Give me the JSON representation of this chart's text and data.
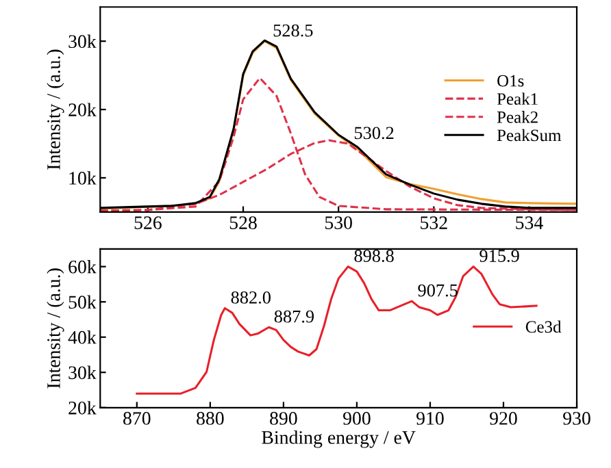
{
  "chart_data": [
    {
      "type": "line",
      "ylabel": "Intensity / (a.u.)",
      "xlim": [
        525,
        535
      ],
      "ylim": [
        5000,
        35000
      ],
      "xticks": [
        526,
        528,
        530,
        532,
        534
      ],
      "yticks": [
        {
          "value": 10000,
          "label": "10k"
        },
        {
          "value": 20000,
          "label": "20k"
        },
        {
          "value": 30000,
          "label": "30k"
        }
      ],
      "legend": "right",
      "grid": false,
      "series": [
        {
          "name": "O1s",
          "color": "#f0a030",
          "line_style": "solid",
          "x": [
            525.0,
            526.5,
            527.0,
            527.3,
            527.5,
            527.8,
            528.0,
            528.2,
            528.45,
            528.7,
            529.0,
            529.5,
            530.0,
            530.4,
            531.0,
            531.5,
            532.0,
            532.5,
            533.0,
            533.5,
            534.0,
            535.0
          ],
          "values": [
            5500,
            5900,
            6200,
            7000,
            9500,
            16900,
            25000,
            28300,
            30000,
            29000,
            24300,
            19400,
            16200,
            14200,
            10100,
            9100,
            8400,
            7600,
            6900,
            6400,
            6300,
            6200
          ]
        },
        {
          "name": "Peak1",
          "color": "#e0304a",
          "line_style": "dashed",
          "x": [
            525.0,
            526.0,
            527.0,
            527.5,
            527.8,
            528.0,
            528.35,
            528.7,
            529.0,
            529.3,
            529.6,
            530.0,
            531.0,
            535.0
          ],
          "values": [
            5200,
            5300,
            5800,
            9500,
            16000,
            21500,
            24600,
            22000,
            16500,
            10500,
            7200,
            5900,
            5400,
            5300
          ]
        },
        {
          "name": "Peak2",
          "color": "#e0304a",
          "line_style": "dashed",
          "x": [
            525.0,
            526.0,
            527.0,
            527.5,
            528.0,
            528.5,
            529.0,
            529.5,
            529.8,
            530.2,
            530.5,
            531.0,
            531.5,
            532.0,
            532.5,
            533.0,
            534.0,
            535.0
          ],
          "values": [
            5200,
            5300,
            6200,
            7500,
            9400,
            11300,
            13500,
            15100,
            15500,
            15000,
            13500,
            11000,
            8700,
            7000,
            6000,
            5600,
            5400,
            5300
          ]
        },
        {
          "name": "PeakSum",
          "color": "#000000",
          "line_style": "solid",
          "x": [
            525.0,
            526.5,
            527.0,
            527.3,
            527.5,
            527.8,
            528.0,
            528.2,
            528.45,
            528.7,
            529.0,
            529.5,
            530.0,
            530.4,
            531.0,
            531.5,
            532.0,
            532.5,
            533.0,
            533.5,
            534.0,
            535.0
          ],
          "values": [
            5600,
            5900,
            6300,
            7200,
            9800,
            17200,
            25200,
            28500,
            30100,
            29200,
            24500,
            19600,
            16300,
            14500,
            10500,
            9000,
            7700,
            6800,
            6200,
            5800,
            5600,
            5600
          ]
        }
      ],
      "annotations": [
        {
          "text": "528.5",
          "x": 528.5,
          "y": 30000
        },
        {
          "text": "530.2",
          "x": 530.2,
          "y": 15000
        }
      ]
    },
    {
      "type": "line",
      "xlabel": "Binding energy / eV",
      "ylabel": "Intensity / (a.u.)",
      "xlim": [
        865,
        930
      ],
      "ylim": [
        20000,
        65000
      ],
      "xticks": [
        870,
        880,
        890,
        900,
        910,
        920,
        930
      ],
      "yticks": [
        {
          "value": 20000,
          "label": "20k"
        },
        {
          "value": 30000,
          "label": "30k"
        },
        {
          "value": 40000,
          "label": "40k"
        },
        {
          "value": 50000,
          "label": "50k"
        },
        {
          "value": 60000,
          "label": "60k"
        }
      ],
      "legend": "right",
      "grid": false,
      "series": [
        {
          "name": "Ce3d",
          "color": "#e8202a",
          "line_style": "solid",
          "x": [
            870,
            876,
            878,
            879.5,
            880.5,
            881.5,
            882.0,
            883,
            884,
            885.5,
            886.5,
            888,
            889,
            890,
            891,
            892,
            893.5,
            894.5,
            895.5,
            896.5,
            897.5,
            898.8,
            900,
            901,
            902,
            903,
            904.5,
            906,
            907.5,
            908.5,
            910,
            911,
            912.5,
            913.5,
            914.5,
            915.9,
            917,
            918.5,
            919.5,
            921,
            923,
            924.5
          ],
          "values": [
            24000,
            24000,
            25600,
            30100,
            39200,
            46300,
            48200,
            46900,
            43700,
            40500,
            41000,
            42800,
            42000,
            39200,
            37200,
            35900,
            34800,
            36600,
            43000,
            50800,
            56600,
            60000,
            58600,
            55300,
            50800,
            47600,
            47600,
            48900,
            50200,
            48500,
            47600,
            46300,
            47600,
            51500,
            57300,
            60000,
            57900,
            52100,
            49300,
            48500,
            48700,
            48900
          ]
        }
      ],
      "annotations": [
        {
          "text": "882.0",
          "x": 882.0,
          "y": 48200
        },
        {
          "text": "887.9",
          "x": 887.9,
          "y": 42800
        },
        {
          "text": "898.8",
          "x": 898.8,
          "y": 60000
        },
        {
          "text": "907.5",
          "x": 907.5,
          "y": 50200
        },
        {
          "text": "915.9",
          "x": 915.9,
          "y": 60000
        }
      ]
    }
  ]
}
